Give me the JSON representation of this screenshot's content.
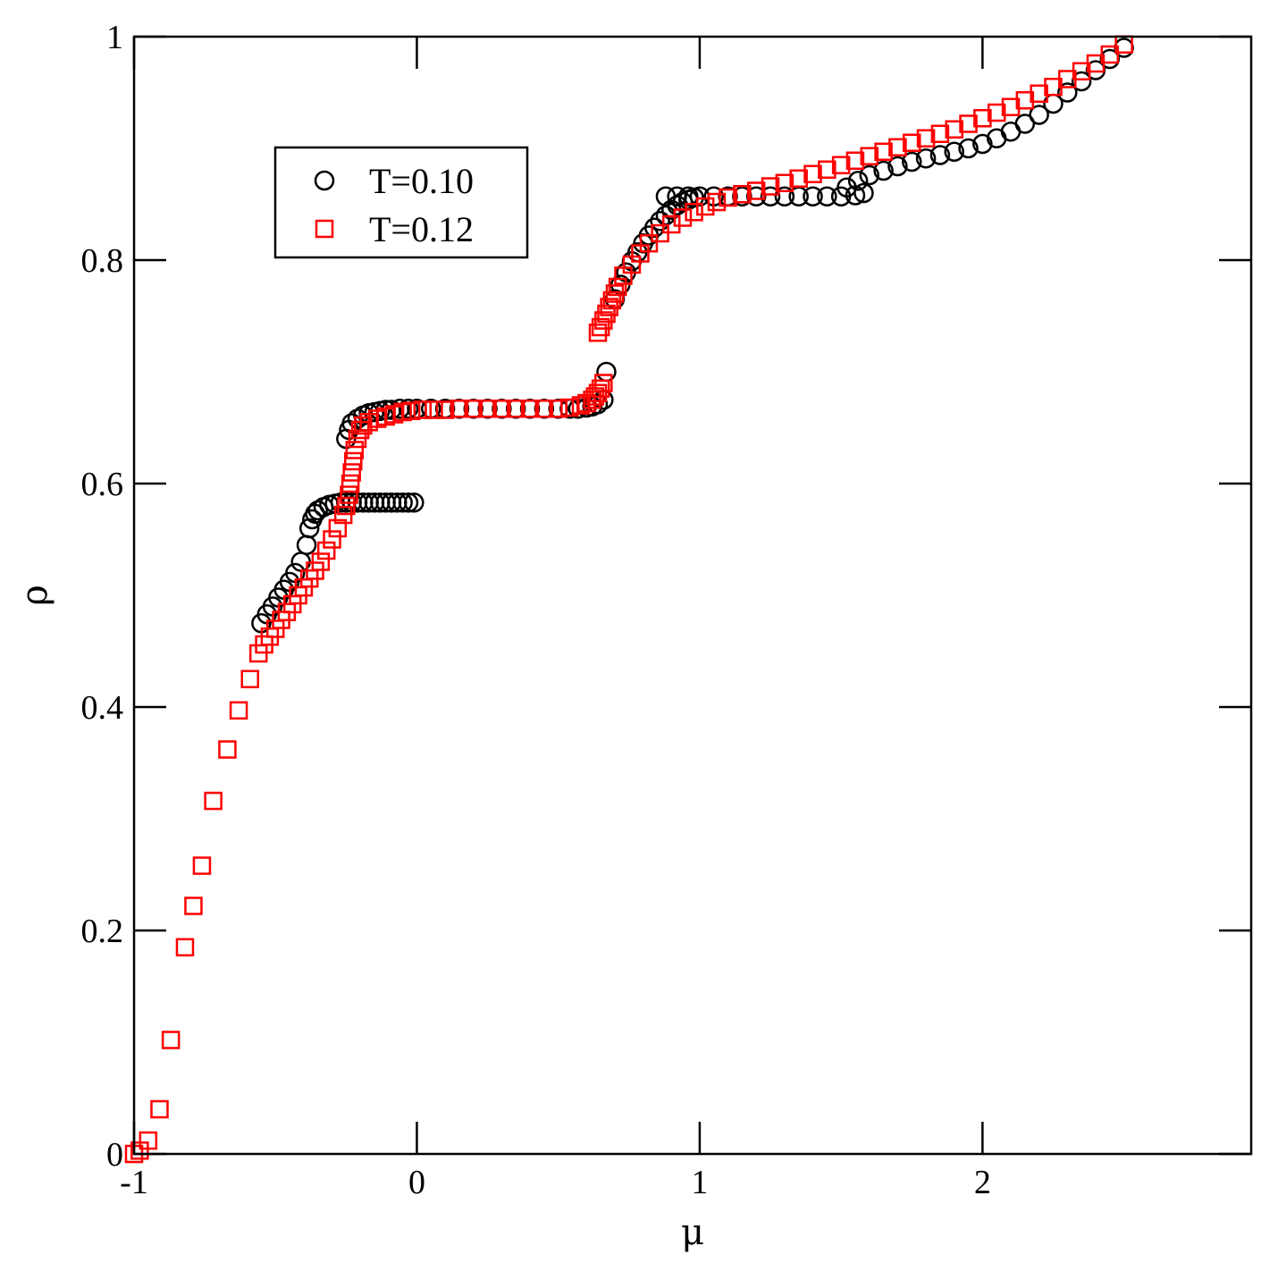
{
  "chart_data": {
    "type": "scatter",
    "xlabel": "μ",
    "ylabel": "ρ",
    "xlim": [
      -1,
      2.95
    ],
    "ylim": [
      0,
      1
    ],
    "grid": false,
    "legend_position": "top-left",
    "x_ticks": [
      {
        "value": -1,
        "label": "-1"
      },
      {
        "value": 0,
        "label": "0"
      },
      {
        "value": 1,
        "label": "1"
      },
      {
        "value": 2,
        "label": "2"
      }
    ],
    "y_ticks": [
      {
        "value": 0,
        "label": "0"
      },
      {
        "value": 0.2,
        "label": "0.2"
      },
      {
        "value": 0.4,
        "label": "0.4"
      },
      {
        "value": 0.6,
        "label": "0.6"
      },
      {
        "value": 0.8,
        "label": "0.8"
      },
      {
        "value": 1,
        "label": "1"
      }
    ],
    "series": [
      {
        "name": "T=0.10",
        "marker": "circle",
        "color": "#000000",
        "x": [
          -0.55,
          -0.53,
          -0.51,
          -0.49,
          -0.47,
          -0.45,
          -0.43,
          -0.41,
          -0.39,
          -0.38,
          -0.37,
          -0.36,
          -0.35,
          -0.33,
          -0.31,
          -0.29,
          -0.27,
          -0.25,
          -0.23,
          -0.21,
          -0.19,
          -0.17,
          -0.15,
          -0.13,
          -0.11,
          -0.09,
          -0.07,
          -0.05,
          -0.03,
          -0.01,
          -0.25,
          -0.24,
          -0.23,
          -0.21,
          -0.19,
          -0.17,
          -0.15,
          -0.13,
          -0.11,
          -0.09,
          -0.06,
          -0.03,
          0.0,
          0.05,
          0.1,
          0.15,
          0.2,
          0.25,
          0.3,
          0.35,
          0.4,
          0.45,
          0.5,
          0.54,
          0.57,
          0.6,
          0.62,
          0.64,
          0.66,
          0.67,
          0.7,
          0.72,
          0.74,
          0.76,
          0.78,
          0.8,
          0.82,
          0.84,
          0.86,
          0.88,
          0.9,
          0.92,
          0.94,
          0.96,
          0.98,
          0.88,
          0.92,
          0.96,
          1.0,
          1.05,
          1.1,
          1.15,
          1.2,
          1.25,
          1.3,
          1.35,
          1.4,
          1.45,
          1.5,
          1.55,
          1.58,
          1.52,
          1.56,
          1.6,
          1.65,
          1.7,
          1.75,
          1.8,
          1.85,
          1.9,
          1.95,
          2.0,
          2.05,
          2.1,
          2.15,
          2.2,
          2.25,
          2.3,
          2.35,
          2.4,
          2.45,
          2.5
        ],
        "y": [
          0.475,
          0.483,
          0.49,
          0.498,
          0.505,
          0.512,
          0.52,
          0.53,
          0.545,
          0.56,
          0.568,
          0.573,
          0.576,
          0.579,
          0.581,
          0.582,
          0.583,
          0.583,
          0.583,
          0.583,
          0.583,
          0.583,
          0.583,
          0.583,
          0.583,
          0.583,
          0.583,
          0.583,
          0.583,
          0.583,
          0.64,
          0.648,
          0.654,
          0.658,
          0.661,
          0.663,
          0.664,
          0.665,
          0.666,
          0.666,
          0.667,
          0.667,
          0.667,
          0.667,
          0.667,
          0.667,
          0.667,
          0.667,
          0.667,
          0.667,
          0.667,
          0.667,
          0.667,
          0.667,
          0.667,
          0.668,
          0.669,
          0.671,
          0.675,
          0.7,
          0.765,
          0.778,
          0.789,
          0.799,
          0.807,
          0.815,
          0.822,
          0.829,
          0.835,
          0.84,
          0.845,
          0.849,
          0.852,
          0.854,
          0.856,
          0.857,
          0.857,
          0.857,
          0.857,
          0.857,
          0.857,
          0.857,
          0.857,
          0.857,
          0.857,
          0.857,
          0.857,
          0.857,
          0.857,
          0.858,
          0.86,
          0.865,
          0.871,
          0.876,
          0.88,
          0.884,
          0.888,
          0.891,
          0.894,
          0.897,
          0.9,
          0.904,
          0.909,
          0.915,
          0.922,
          0.93,
          0.94,
          0.95,
          0.96,
          0.97,
          0.98,
          0.99
        ]
      },
      {
        "name": "T=0.12",
        "marker": "square",
        "color": "#ff0000",
        "x": [
          -1.0,
          -0.98,
          -0.95,
          -0.91,
          -0.87,
          -0.82,
          -0.79,
          -0.76,
          -0.72,
          -0.67,
          -0.63,
          -0.59,
          -0.56,
          -0.54,
          -0.52,
          -0.5,
          -0.48,
          -0.46,
          -0.44,
          -0.42,
          -0.4,
          -0.38,
          -0.36,
          -0.34,
          -0.32,
          -0.3,
          -0.28,
          -0.26,
          -0.25,
          -0.24,
          -0.235,
          -0.23,
          -0.225,
          -0.22,
          -0.21,
          -0.2,
          -0.19,
          -0.17,
          -0.14,
          -0.11,
          -0.08,
          -0.05,
          -0.02,
          0.02,
          0.06,
          0.1,
          0.15,
          0.2,
          0.25,
          0.3,
          0.35,
          0.4,
          0.45,
          0.5,
          0.54,
          0.58,
          0.6,
          0.62,
          0.63,
          0.64,
          0.65,
          0.66,
          0.64,
          0.65,
          0.66,
          0.67,
          0.68,
          0.69,
          0.7,
          0.71,
          0.73,
          0.76,
          0.79,
          0.82,
          0.86,
          0.9,
          0.94,
          0.98,
          1.02,
          1.06,
          1.1,
          1.15,
          1.2,
          1.25,
          1.3,
          1.35,
          1.4,
          1.45,
          1.5,
          1.55,
          1.6,
          1.65,
          1.7,
          1.75,
          1.8,
          1.85,
          1.9,
          1.95,
          2.0,
          2.05,
          2.1,
          2.15,
          2.2,
          2.25,
          2.3,
          2.35,
          2.4,
          2.45,
          2.5
        ],
        "y": [
          0.0,
          0.003,
          0.012,
          0.04,
          0.102,
          0.185,
          0.222,
          0.258,
          0.316,
          0.362,
          0.397,
          0.425,
          0.448,
          0.456,
          0.463,
          0.47,
          0.478,
          0.485,
          0.492,
          0.5,
          0.507,
          0.515,
          0.522,
          0.53,
          0.54,
          0.55,
          0.56,
          0.572,
          0.58,
          0.59,
          0.6,
          0.61,
          0.62,
          0.63,
          0.64,
          0.648,
          0.652,
          0.655,
          0.658,
          0.66,
          0.662,
          0.664,
          0.665,
          0.666,
          0.666,
          0.666,
          0.667,
          0.667,
          0.667,
          0.667,
          0.667,
          0.667,
          0.667,
          0.667,
          0.668,
          0.67,
          0.672,
          0.675,
          0.678,
          0.681,
          0.685,
          0.69,
          0.735,
          0.74,
          0.746,
          0.752,
          0.758,
          0.764,
          0.77,
          0.776,
          0.786,
          0.796,
          0.806,
          0.815,
          0.824,
          0.832,
          0.838,
          0.843,
          0.848,
          0.852,
          0.856,
          0.859,
          0.862,
          0.866,
          0.869,
          0.873,
          0.877,
          0.881,
          0.885,
          0.889,
          0.893,
          0.897,
          0.901,
          0.905,
          0.909,
          0.913,
          0.917,
          0.922,
          0.927,
          0.932,
          0.937,
          0.943,
          0.949,
          0.955,
          0.962,
          0.969,
          0.976,
          0.984,
          0.993
        ]
      }
    ]
  }
}
